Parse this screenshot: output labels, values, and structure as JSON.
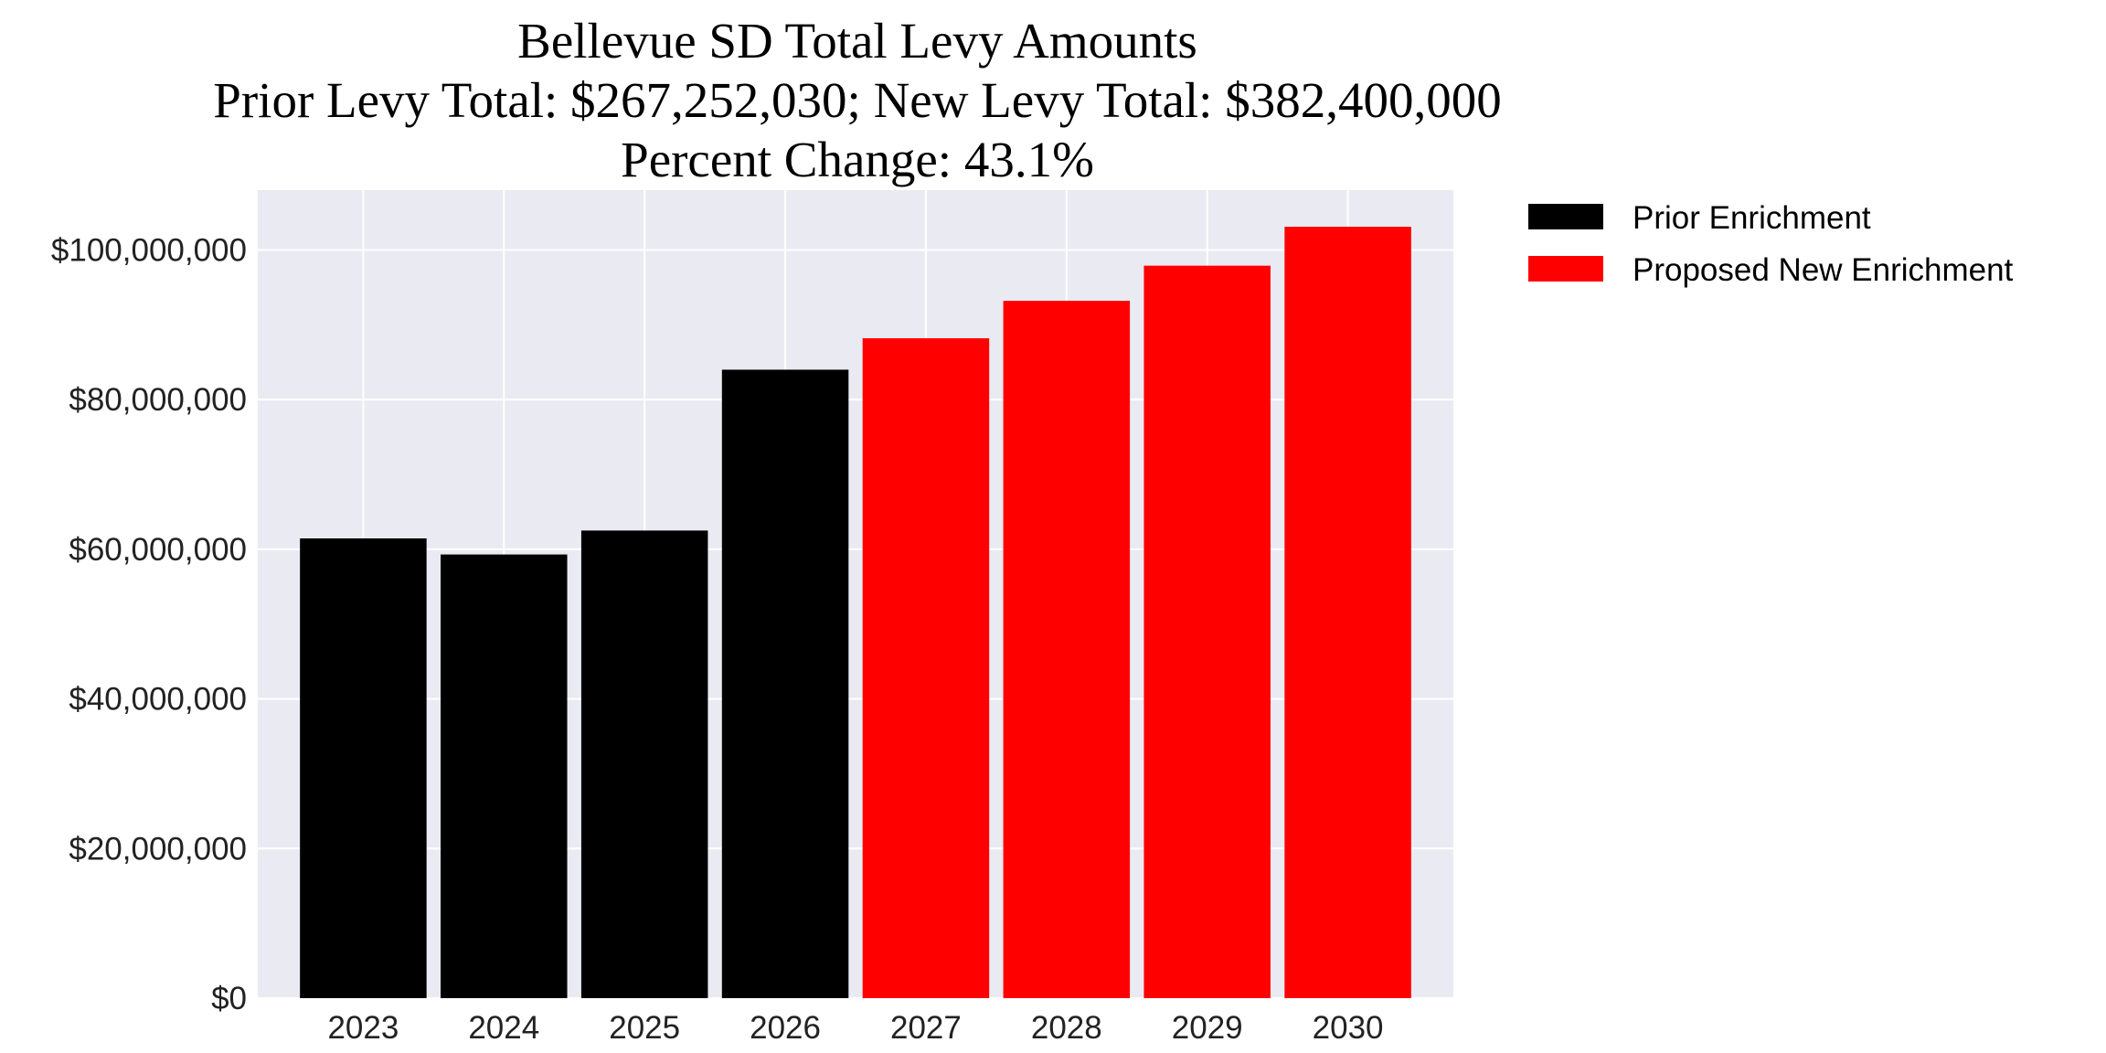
{
  "chart_data": {
    "type": "bar",
    "title_lines": [
      "Bellevue SD Total Levy Amounts",
      "Prior Levy Total:  $267,252,030; New Levy Total: $382,400,000",
      "Percent Change: 43.1%"
    ],
    "xlabel": "",
    "ylabel": "",
    "categories": [
      "2023",
      "2024",
      "2025",
      "2026",
      "2027",
      "2028",
      "2029",
      "2030"
    ],
    "series": [
      {
        "name": "Prior Enrichment",
        "color": "#000000",
        "values": [
          61450000,
          59300000,
          62500000,
          84000000,
          null,
          null,
          null,
          null
        ]
      },
      {
        "name": "Proposed New Enrichment",
        "color": "#ff0000",
        "values": [
          null,
          null,
          null,
          null,
          88200000,
          93200000,
          97900000,
          103100000
        ]
      }
    ],
    "ylim": [
      0,
      108000000
    ],
    "yticks": [
      0,
      20000000,
      40000000,
      60000000,
      80000000,
      100000000
    ],
    "ytick_labels": [
      "$0",
      "$20,000,000",
      "$40,000,000",
      "$60,000,000",
      "$80,000,000",
      "$100,000,000"
    ],
    "grid": true,
    "background": "#eaeaf2",
    "legend_position": "outside-top-right"
  }
}
